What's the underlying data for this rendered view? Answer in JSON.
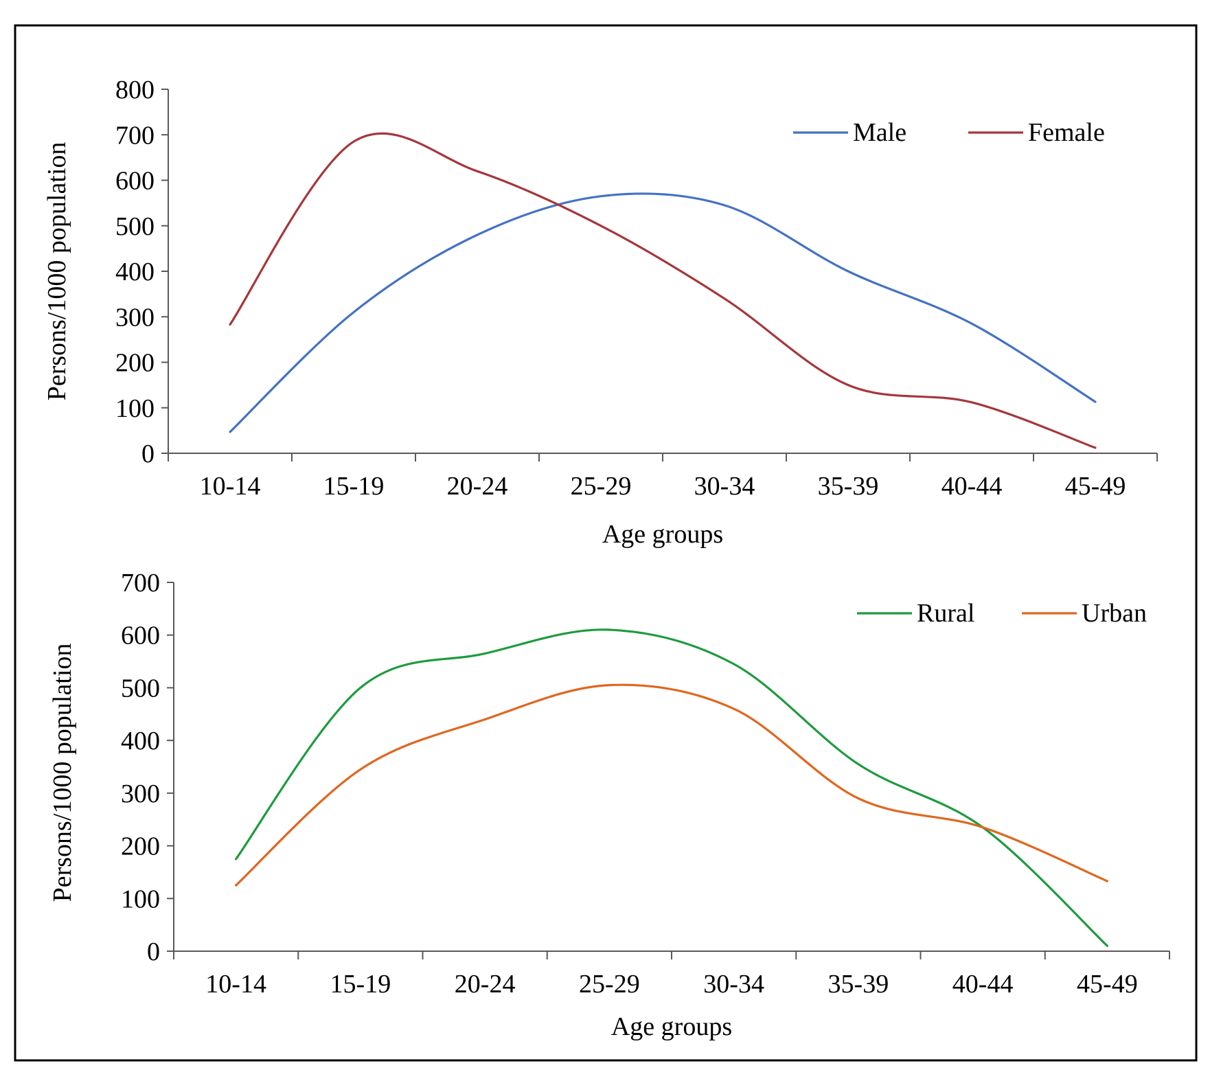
{
  "chart_data": [
    {
      "type": "line",
      "categories": [
        "10-14",
        "15-19",
        "20-24",
        "25-29",
        "30-34",
        "35-39",
        "40-44",
        "45-49"
      ],
      "series": [
        {
          "name": "Male",
          "color": "#4472c4",
          "values": [
            47,
            310,
            480,
            565,
            545,
            400,
            285,
            113
          ]
        },
        {
          "name": "Female",
          "color": "#a5373b",
          "values": [
            283,
            685,
            620,
            500,
            340,
            150,
            112,
            12
          ]
        }
      ],
      "title": "",
      "xlabel": "Age groups",
      "ylabel": "Persons/1000 population",
      "ylim": [
        0,
        800
      ],
      "yticks": [
        "0",
        "100",
        "200",
        "300",
        "400",
        "500",
        "600",
        "700",
        "800"
      ],
      "grid": false,
      "legend_position": "top-right"
    },
    {
      "type": "line",
      "categories": [
        "10-14",
        "15-19",
        "20-24",
        "25-29",
        "30-34",
        "35-39",
        "40-44",
        "45-49"
      ],
      "series": [
        {
          "name": "Rural",
          "color": "#1e9b3d",
          "values": [
            175,
            500,
            565,
            610,
            545,
            355,
            235,
            10
          ]
        },
        {
          "name": "Urban",
          "color": "#e0661f",
          "values": [
            125,
            345,
            440,
            505,
            460,
            290,
            235,
            133
          ]
        }
      ],
      "title": "",
      "xlabel": "Age groups",
      "ylabel": "Persons/1000 population",
      "ylim": [
        0,
        700
      ],
      "yticks": [
        "0",
        "100",
        "200",
        "300",
        "400",
        "500",
        "600",
        "700"
      ],
      "grid": false,
      "legend_position": "top-right"
    }
  ]
}
